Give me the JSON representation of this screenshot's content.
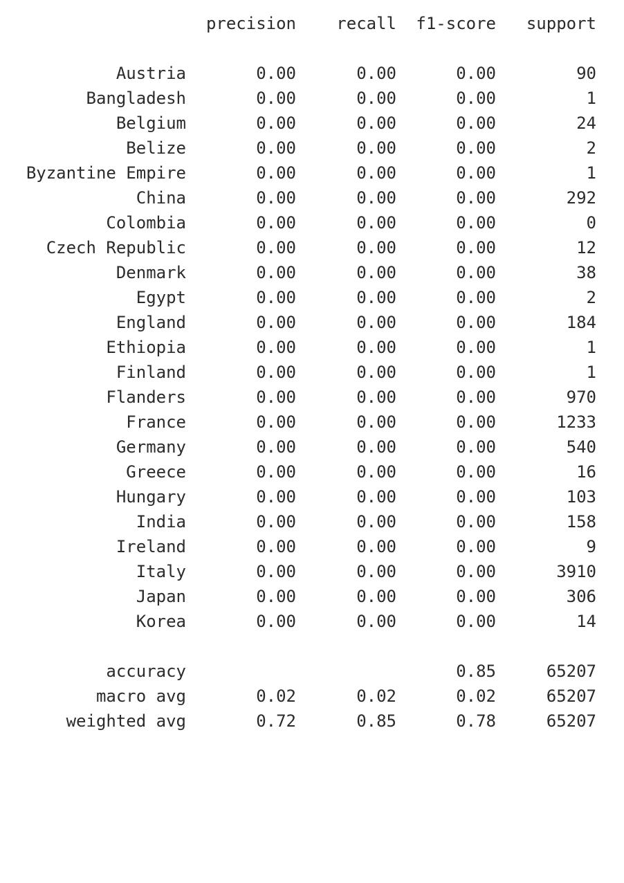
{
  "header": {
    "precision": "precision",
    "recall": "recall",
    "f1_score": "f1-score",
    "support": "support"
  },
  "classes": [
    {
      "label": "Austria",
      "precision": "0.00",
      "recall": "0.00",
      "f1": "0.00",
      "support": "90"
    },
    {
      "label": "Bangladesh",
      "precision": "0.00",
      "recall": "0.00",
      "f1": "0.00",
      "support": "1"
    },
    {
      "label": "Belgium",
      "precision": "0.00",
      "recall": "0.00",
      "f1": "0.00",
      "support": "24"
    },
    {
      "label": "Belize",
      "precision": "0.00",
      "recall": "0.00",
      "f1": "0.00",
      "support": "2"
    },
    {
      "label": "Byzantine Empire",
      "precision": "0.00",
      "recall": "0.00",
      "f1": "0.00",
      "support": "1"
    },
    {
      "label": "China",
      "precision": "0.00",
      "recall": "0.00",
      "f1": "0.00",
      "support": "292"
    },
    {
      "label": "Colombia",
      "precision": "0.00",
      "recall": "0.00",
      "f1": "0.00",
      "support": "0"
    },
    {
      "label": "Czech Republic",
      "precision": "0.00",
      "recall": "0.00",
      "f1": "0.00",
      "support": "12"
    },
    {
      "label": "Denmark",
      "precision": "0.00",
      "recall": "0.00",
      "f1": "0.00",
      "support": "38"
    },
    {
      "label": "Egypt",
      "precision": "0.00",
      "recall": "0.00",
      "f1": "0.00",
      "support": "2"
    },
    {
      "label": "England",
      "precision": "0.00",
      "recall": "0.00",
      "f1": "0.00",
      "support": "184"
    },
    {
      "label": "Ethiopia",
      "precision": "0.00",
      "recall": "0.00",
      "f1": "0.00",
      "support": "1"
    },
    {
      "label": "Finland",
      "precision": "0.00",
      "recall": "0.00",
      "f1": "0.00",
      "support": "1"
    },
    {
      "label": "Flanders",
      "precision": "0.00",
      "recall": "0.00",
      "f1": "0.00",
      "support": "970"
    },
    {
      "label": "France",
      "precision": "0.00",
      "recall": "0.00",
      "f1": "0.00",
      "support": "1233"
    },
    {
      "label": "Germany",
      "precision": "0.00",
      "recall": "0.00",
      "f1": "0.00",
      "support": "540"
    },
    {
      "label": "Greece",
      "precision": "0.00",
      "recall": "0.00",
      "f1": "0.00",
      "support": "16"
    },
    {
      "label": "Hungary",
      "precision": "0.00",
      "recall": "0.00",
      "f1": "0.00",
      "support": "103"
    },
    {
      "label": "India",
      "precision": "0.00",
      "recall": "0.00",
      "f1": "0.00",
      "support": "158"
    },
    {
      "label": "Ireland",
      "precision": "0.00",
      "recall": "0.00",
      "f1": "0.00",
      "support": "9"
    },
    {
      "label": "Italy",
      "precision": "0.00",
      "recall": "0.00",
      "f1": "0.00",
      "support": "3910"
    },
    {
      "label": "Japan",
      "precision": "0.00",
      "recall": "0.00",
      "f1": "0.00",
      "support": "306"
    },
    {
      "label": "Korea",
      "precision": "0.00",
      "recall": "0.00",
      "f1": "0.00",
      "support": "14"
    }
  ],
  "summary": {
    "accuracy": {
      "label": "accuracy",
      "precision": "",
      "recall": "",
      "f1": "0.85",
      "support": "65207"
    },
    "macro_avg": {
      "label": "macro avg",
      "precision": "0.02",
      "recall": "0.02",
      "f1": "0.02",
      "support": "65207"
    },
    "weighted_avg": {
      "label": "weighted avg",
      "precision": "0.72",
      "recall": "0.85",
      "f1": "0.78",
      "support": "65207"
    }
  }
}
